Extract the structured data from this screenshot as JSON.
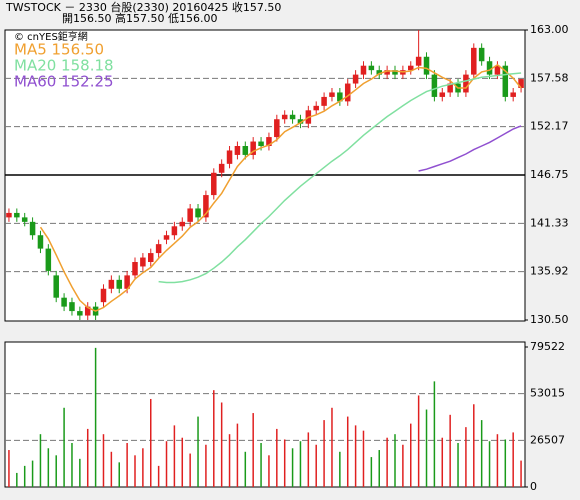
{
  "chart_data": [
    {
      "type": "candlestick",
      "title": "TWSTOCK － 2330  台股(2330) 20160425  收157.50",
      "subtitle": "開156.50  高157.50  低156.00",
      "source": "© cnYES鉅亨網",
      "up_color": "#e02020",
      "down_color": "#1a9a1a",
      "categories": [
        null,
        null,
        null,
        null,
        null,
        null,
        null,
        null,
        null,
        null,
        null,
        null,
        null,
        null,
        null,
        null,
        null,
        null,
        null,
        null,
        null,
        null,
        null,
        null,
        null,
        null,
        null,
        null,
        null,
        null,
        null,
        null,
        null,
        null,
        null,
        null,
        null,
        null,
        null,
        null,
        null,
        null,
        null,
        null,
        null,
        null,
        null,
        null,
        null,
        null,
        null,
        null,
        null,
        null,
        null,
        null,
        null,
        null,
        null,
        null,
        null,
        null,
        null,
        null,
        null,
        null
      ],
      "open": [
        142,
        142.5,
        142,
        141.5,
        140,
        138.5,
        135.5,
        133,
        132.5,
        131.5,
        131,
        132,
        132.5,
        134,
        135,
        134,
        135.5,
        136.5,
        137,
        138,
        139.5,
        140,
        141,
        141.5,
        143,
        142,
        144.5,
        147,
        148,
        149,
        150,
        149,
        150.5,
        150,
        151,
        153,
        153.5,
        153,
        152.5,
        154,
        154.5,
        155.5,
        156,
        155,
        157,
        158,
        159,
        158.5,
        158,
        158.5,
        158,
        158.5,
        159,
        160,
        158,
        155.5,
        156,
        157,
        156,
        158,
        161,
        159.5,
        158,
        159,
        155.5,
        156.5
      ],
      "high": [
        143,
        143,
        142.5,
        142,
        140.5,
        139,
        136,
        133.5,
        133,
        132,
        132.5,
        132.5,
        134.5,
        135.5,
        135.5,
        136,
        137.5,
        138,
        138.5,
        139.5,
        140.5,
        141.5,
        142,
        143.5,
        143.5,
        145,
        147.5,
        148.5,
        150,
        150.5,
        150.5,
        151,
        151,
        151.5,
        153.5,
        154,
        154,
        153.5,
        154.5,
        155,
        156,
        156.5,
        156.5,
        157.5,
        158.5,
        159.5,
        159.5,
        159,
        159,
        159,
        159,
        159.5,
        163,
        160.5,
        158.5,
        156.5,
        157.5,
        157.5,
        158.5,
        161.5,
        161.5,
        160,
        159.5,
        159.5,
        156.5,
        157.5
      ],
      "low": [
        141.5,
        141.5,
        141,
        139.5,
        138,
        135.5,
        132.5,
        131.5,
        131,
        130.5,
        130.5,
        130.5,
        132,
        133.5,
        133.5,
        133.5,
        135,
        136,
        136.5,
        137.5,
        139,
        139.5,
        140.5,
        141,
        141.5,
        141.5,
        144,
        146.5,
        147.5,
        148.5,
        148.5,
        148.5,
        149.5,
        149.5,
        150.5,
        152.5,
        152.5,
        152,
        152,
        153.5,
        154,
        155,
        154.5,
        154.5,
        156.5,
        157.5,
        158,
        157.5,
        157.5,
        157.5,
        157.5,
        158,
        158.5,
        157.5,
        155,
        155,
        155.5,
        155.5,
        155.5,
        157.5,
        159,
        157.5,
        157.5,
        155,
        155,
        156
      ],
      "close": [
        142.5,
        142,
        141.5,
        140,
        138.5,
        136,
        133,
        132,
        131.5,
        131,
        132,
        131,
        134,
        135,
        134,
        135.5,
        137,
        137.5,
        138,
        139,
        140,
        141,
        141.5,
        143,
        142,
        144.5,
        147,
        148,
        149.5,
        150,
        149,
        150.5,
        150,
        151,
        153,
        153.5,
        153,
        152.5,
        154,
        154.5,
        155.5,
        156,
        155,
        157,
        158,
        159,
        158.5,
        158,
        158.5,
        158,
        158.5,
        159,
        160,
        158,
        155.5,
        156,
        157,
        156,
        158,
        161,
        159.5,
        158,
        159,
        155.5,
        156,
        157.5
      ],
      "series": [
        {
          "name": "MA5 156.50",
          "color": "#f0a030",
          "values": [
            null,
            null,
            null,
            null,
            140.9,
            139.6,
            137.8,
            135.9,
            134.2,
            132.7,
            131.9,
            131.5,
            131.9,
            132.6,
            133.2,
            133.9,
            135.1,
            135.8,
            136.4,
            137.4,
            138.3,
            139.1,
            139.9,
            140.9,
            141.5,
            142.4,
            143.6,
            144.7,
            146.2,
            147.7,
            148.7,
            149.4,
            149.8,
            150.1,
            150.7,
            151.6,
            152.1,
            152.6,
            153.2,
            153.5,
            153.9,
            154.5,
            155,
            155.6,
            156.3,
            157,
            157.5,
            158.1,
            158.4,
            158.4,
            158.3,
            158.4,
            158.8,
            158.7,
            158.2,
            157.7,
            157.3,
            156.5,
            156.5,
            157.6,
            158.3,
            158.5,
            159.1,
            158.4,
            157.6,
            156.5
          ]
        },
        {
          "name": "MA20 158.18",
          "color": "#80e0a0",
          "values": [
            null,
            null,
            null,
            null,
            null,
            null,
            null,
            null,
            null,
            null,
            null,
            null,
            null,
            null,
            null,
            null,
            null,
            null,
            null,
            134.8,
            134.7,
            134.7,
            134.8,
            135,
            135.3,
            135.7,
            136.3,
            137,
            137.8,
            138.7,
            139.5,
            140.4,
            141.3,
            142.1,
            143,
            143.9,
            144.7,
            145.5,
            146.2,
            146.9,
            147.6,
            148.3,
            148.9,
            149.6,
            150.4,
            151.2,
            151.9,
            152.6,
            153.3,
            153.9,
            154.5,
            155.1,
            155.6,
            156.1,
            156.4,
            156.7,
            156.9,
            157.1,
            157.3,
            157.5,
            157.7,
            157.8,
            157.9,
            158,
            158.1,
            158.18
          ]
        },
        {
          "name": "MA60 152.25",
          "color": "#9050d0",
          "values": [
            null,
            null,
            null,
            null,
            null,
            null,
            null,
            null,
            null,
            null,
            null,
            null,
            null,
            null,
            null,
            null,
            null,
            null,
            null,
            null,
            null,
            null,
            null,
            null,
            null,
            null,
            null,
            null,
            null,
            null,
            null,
            null,
            null,
            null,
            null,
            null,
            null,
            null,
            null,
            null,
            null,
            null,
            null,
            null,
            null,
            null,
            null,
            null,
            null,
            null,
            null,
            null,
            147.2,
            147.4,
            147.7,
            148,
            148.3,
            148.7,
            149.1,
            149.6,
            150,
            150.4,
            150.9,
            151.4,
            151.9,
            152.25
          ]
        }
      ],
      "ylim": [
        130.5,
        163
      ],
      "yticks": [
        {
          "value": 163,
          "label": "163.00"
        },
        {
          "value": 157.58,
          "label": "157.58"
        },
        {
          "value": 152.17,
          "label": "152.17"
        },
        {
          "value": 146.75,
          "label": "146.75"
        },
        {
          "value": 141.33,
          "label": "141.33"
        },
        {
          "value": 135.92,
          "label": "135.92"
        },
        {
          "value": 130.5,
          "label": "130.50"
        }
      ]
    },
    {
      "type": "volume",
      "values": [
        21000,
        8000,
        12000,
        15000,
        30000,
        22000,
        18000,
        45000,
        25000,
        16000,
        33000,
        79000,
        30000,
        20000,
        14000,
        25000,
        18000,
        22000,
        50000,
        12000,
        26000,
        35000,
        28000,
        19000,
        40000,
        24000,
        55000,
        48000,
        30000,
        36000,
        20000,
        42000,
        25000,
        18000,
        33000,
        27000,
        22000,
        26000,
        31000,
        24000,
        38000,
        45000,
        20000,
        40000,
        35000,
        32000,
        17000,
        21000,
        28000,
        30000,
        24000,
        36000,
        52000,
        44000,
        60000,
        28000,
        41000,
        25000,
        34000,
        47000,
        38000,
        26000,
        30000,
        27000,
        31000,
        15000
      ],
      "ylim": [
        0,
        79522
      ],
      "yticks": [
        0,
        26507,
        53015,
        79522
      ]
    }
  ]
}
